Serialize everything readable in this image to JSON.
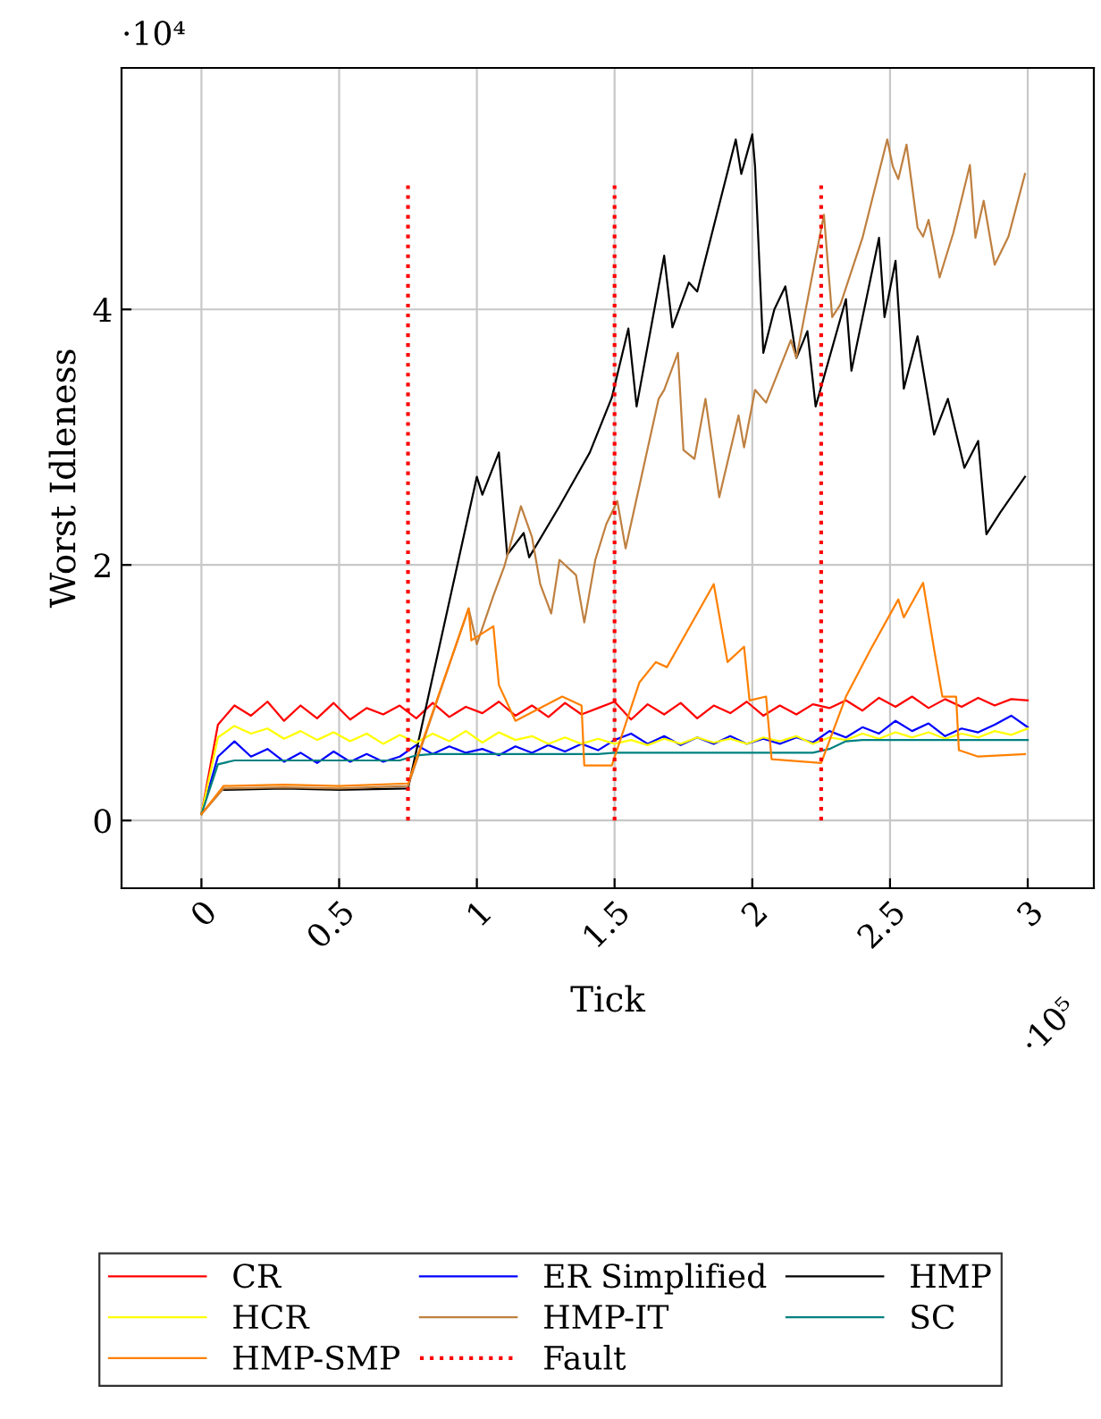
{
  "chart_data": {
    "type": "line",
    "xlabel": "Tick",
    "ylabel": "Worst Idleness",
    "annotations": [
      "·10⁴",
      "·10⁵"
    ],
    "xlim": [
      -0.29,
      3.24
    ],
    "ylim": [
      -0.53,
      5.89
    ],
    "xticks": [
      0,
      0.5,
      1,
      1.5,
      2,
      2.5,
      3
    ],
    "yticks": [
      0,
      2,
      4
    ],
    "grid": true,
    "legend": "bottom",
    "x": [
      0,
      0.06,
      0.12,
      0.18,
      0.24,
      0.3,
      0.36,
      0.42,
      0.48,
      0.54,
      0.6,
      0.66,
      0.72,
      0.78,
      0.84,
      0.9,
      0.96,
      1.02,
      1.08,
      1.14,
      1.2,
      1.26,
      1.32,
      1.38,
      1.44,
      1.5,
      1.56,
      1.62,
      1.68,
      1.74,
      1.8,
      1.86,
      1.92,
      1.98,
      2.04,
      2.1,
      2.16,
      2.22,
      2.28,
      2.34,
      2.4,
      2.46,
      2.52,
      2.58,
      2.64,
      2.7,
      2.76,
      2.82,
      2.88,
      2.94,
      3.0
    ],
    "series": [
      {
        "name": "CR",
        "color": "#ff0000",
        "values": [
          0.05,
          0.75,
          0.9,
          0.82,
          0.93,
          0.78,
          0.9,
          0.8,
          0.92,
          0.79,
          0.88,
          0.83,
          0.9,
          0.8,
          0.92,
          0.81,
          0.89,
          0.84,
          0.93,
          0.82,
          0.9,
          0.81,
          0.92,
          0.83,
          0.88,
          0.93,
          0.79,
          0.91,
          0.83,
          0.92,
          0.8,
          0.9,
          0.84,
          0.93,
          0.82,
          0.9,
          0.83,
          0.91,
          0.88,
          0.94,
          0.86,
          0.96,
          0.89,
          0.97,
          0.88,
          0.95,
          0.89,
          0.96,
          0.9,
          0.95,
          0.94
        ]
      },
      {
        "name": "ER Simplified",
        "color": "#0000ff",
        "values": [
          0.05,
          0.5,
          0.62,
          0.5,
          0.56,
          0.46,
          0.53,
          0.45,
          0.54,
          0.46,
          0.52,
          0.46,
          0.5,
          0.59,
          0.52,
          0.58,
          0.53,
          0.56,
          0.51,
          0.58,
          0.53,
          0.59,
          0.54,
          0.6,
          0.55,
          0.63,
          0.68,
          0.6,
          0.66,
          0.59,
          0.65,
          0.6,
          0.66,
          0.6,
          0.64,
          0.6,
          0.65,
          0.61,
          0.7,
          0.65,
          0.73,
          0.68,
          0.78,
          0.7,
          0.76,
          0.66,
          0.72,
          0.69,
          0.75,
          0.82,
          0.73
        ]
      },
      {
        "name": "HMP",
        "color": "#000000",
        "x": [
          0.08,
          0.3,
          0.5,
          0.75,
          1.0,
          1.02,
          1.08,
          1.11,
          1.17,
          1.19,
          1.3,
          1.41,
          1.49,
          1.55,
          1.58,
          1.68,
          1.71,
          1.77,
          1.8,
          1.94,
          1.96,
          2.0,
          2.01,
          2.04,
          2.08,
          2.12,
          2.16,
          2.2,
          2.23,
          2.34,
          2.36,
          2.46,
          2.48,
          2.52,
          2.55,
          2.6,
          2.66,
          2.71,
          2.77,
          2.82,
          2.85,
          2.9,
          2.99
        ],
        "values": [
          0.24,
          0.25,
          0.24,
          0.25,
          2.69,
          2.55,
          2.88,
          2.08,
          2.25,
          2.06,
          2.46,
          2.88,
          3.31,
          3.85,
          3.24,
          4.42,
          3.86,
          4.21,
          4.14,
          5.33,
          5.06,
          5.37,
          5.12,
          3.66,
          4.0,
          4.18,
          3.62,
          3.83,
          3.24,
          4.08,
          3.52,
          4.56,
          3.94,
          4.38,
          3.38,
          3.79,
          3.02,
          3.3,
          2.76,
          2.97,
          2.24,
          2.41,
          2.69
        ]
      },
      {
        "name": "HCR",
        "color": "#ffff00",
        "values": [
          0.05,
          0.65,
          0.74,
          0.68,
          0.72,
          0.64,
          0.7,
          0.63,
          0.69,
          0.62,
          0.68,
          0.6,
          0.67,
          0.61,
          0.68,
          0.62,
          0.7,
          0.61,
          0.69,
          0.63,
          0.66,
          0.6,
          0.65,
          0.6,
          0.64,
          0.6,
          0.63,
          0.59,
          0.64,
          0.6,
          0.65,
          0.61,
          0.64,
          0.6,
          0.65,
          0.62,
          0.66,
          0.6,
          0.65,
          0.63,
          0.68,
          0.64,
          0.69,
          0.65,
          0.69,
          0.64,
          0.68,
          0.65,
          0.7,
          0.67,
          0.72
        ]
      },
      {
        "name": "HMP-IT",
        "color": "#bf8040",
        "x": [
          0,
          0.08,
          0.3,
          0.5,
          0.75,
          0.97,
          1.0,
          1.06,
          1.1,
          1.16,
          1.2,
          1.23,
          1.27,
          1.3,
          1.36,
          1.39,
          1.43,
          1.47,
          1.51,
          1.54,
          1.66,
          1.68,
          1.73,
          1.75,
          1.79,
          1.83,
          1.88,
          1.95,
          1.97,
          2.01,
          2.05,
          2.14,
          2.16,
          2.26,
          2.29,
          2.32,
          2.4,
          2.49,
          2.51,
          2.53,
          2.56,
          2.6,
          2.62,
          2.64,
          2.68,
          2.73,
          2.79,
          2.81,
          2.84,
          2.88,
          2.93,
          2.99
        ],
        "values": [
          0.05,
          0.25,
          0.26,
          0.25,
          0.27,
          1.66,
          1.38,
          1.76,
          1.99,
          2.46,
          2.22,
          1.85,
          1.62,
          2.04,
          1.92,
          1.55,
          2.04,
          2.32,
          2.5,
          2.13,
          3.3,
          3.37,
          3.66,
          2.9,
          2.83,
          3.3,
          2.53,
          3.17,
          2.92,
          3.37,
          3.27,
          3.76,
          3.62,
          4.74,
          3.94,
          4.04,
          4.56,
          5.33,
          5.12,
          5.02,
          5.29,
          4.64,
          4.57,
          4.7,
          4.25,
          4.6,
          5.13,
          4.56,
          4.85,
          4.35,
          4.57,
          5.06
        ]
      },
      {
        "name": "SC",
        "color": "#008080",
        "values": [
          0.05,
          0.44,
          0.47,
          0.47,
          0.47,
          0.47,
          0.47,
          0.47,
          0.47,
          0.47,
          0.47,
          0.47,
          0.47,
          0.51,
          0.52,
          0.52,
          0.52,
          0.52,
          0.52,
          0.52,
          0.52,
          0.52,
          0.52,
          0.52,
          0.52,
          0.53,
          0.53,
          0.53,
          0.53,
          0.53,
          0.53,
          0.53,
          0.53,
          0.53,
          0.53,
          0.53,
          0.53,
          0.53,
          0.56,
          0.62,
          0.63,
          0.63,
          0.63,
          0.63,
          0.63,
          0.63,
          0.63,
          0.63,
          0.63,
          0.63,
          0.63
        ]
      },
      {
        "name": "HMP-SMP",
        "color": "#ff8000",
        "x": [
          0,
          0.08,
          0.3,
          0.5,
          0.75,
          0.97,
          0.98,
          1.06,
          1.08,
          1.14,
          1.31,
          1.38,
          1.39,
          1.49,
          1.59,
          1.65,
          1.69,
          1.86,
          1.91,
          1.97,
          1.99,
          2.05,
          2.07,
          2.25,
          2.34,
          2.43,
          2.53,
          2.55,
          2.62,
          2.66,
          2.69,
          2.74,
          2.75,
          2.82,
          2.99
        ],
        "values": [
          0.05,
          0.27,
          0.28,
          0.27,
          0.29,
          1.66,
          1.41,
          1.52,
          1.06,
          0.78,
          0.97,
          0.9,
          0.43,
          0.43,
          1.08,
          1.24,
          1.2,
          1.85,
          1.24,
          1.36,
          0.94,
          0.97,
          0.48,
          0.45,
          0.97,
          1.34,
          1.73,
          1.59,
          1.86,
          1.34,
          0.97,
          0.97,
          0.55,
          0.5,
          0.52
        ]
      },
      {
        "name": "Fault",
        "color": "#ff0000",
        "line_style": "dotted",
        "x": [
          0.75,
          0.75,
          null,
          1.5,
          1.5,
          null,
          2.25,
          2.25
        ],
        "values": [
          0,
          5,
          null,
          0,
          5,
          null,
          0,
          5
        ]
      }
    ]
  }
}
